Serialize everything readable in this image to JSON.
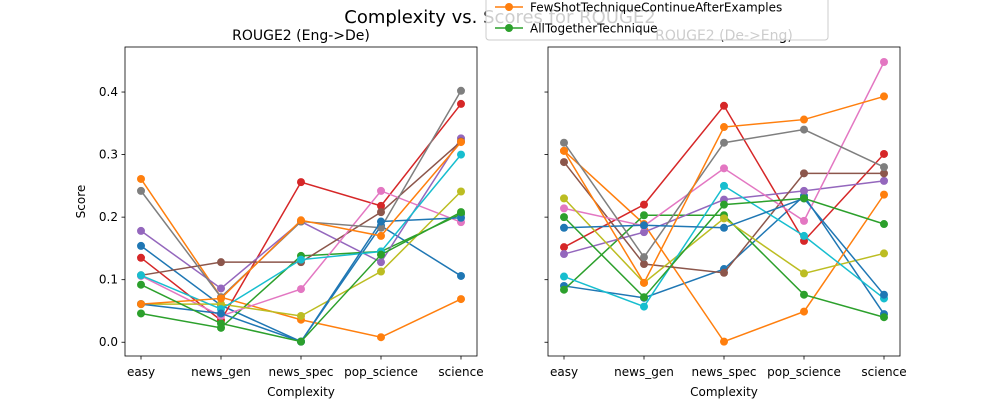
{
  "figure": {
    "suptitle": "Complexity vs. Scores for ROUGE2"
  },
  "legend": {
    "placement": "top-center",
    "entries": [
      {
        "label": "FewShotTechniqueContinueAfterExamples",
        "color": "#ff7f0e"
      },
      {
        "label": "AllTogetherTechnique",
        "color": "#2ca02c"
      }
    ]
  },
  "chart_data": [
    {
      "type": "line",
      "title": "ROUGE2 (Eng->De)",
      "xlabel": "Complexity",
      "ylabel": "Score",
      "categories": [
        "easy",
        "news_gen",
        "news_spec",
        "pop_science",
        "science"
      ],
      "ylim": [
        -0.022,
        0.472
      ],
      "yticks": [
        0.0,
        0.1,
        0.2,
        0.3,
        0.4
      ],
      "ytick_labels": [
        "0.0",
        "0.1",
        "0.2",
        "0.3",
        "0.4"
      ],
      "grid": false,
      "series": [
        {
          "color": "#1f77b4",
          "values": [
            0.154,
            0.059,
            0.001,
            0.186,
            0.106
          ]
        },
        {
          "color": "#ff7f0e",
          "values": [
            0.261,
            0.072,
            0.036,
            0.008,
            0.069
          ]
        },
        {
          "color": "#2ca02c",
          "values": [
            0.046,
            0.023,
            0.138,
            0.145,
            0.205
          ]
        },
        {
          "color": "#d62728",
          "values": [
            0.135,
            0.035,
            0.256,
            0.218,
            0.381
          ]
        },
        {
          "color": "#9467bd",
          "values": [
            0.178,
            0.086,
            0.193,
            0.128,
            0.326
          ]
        },
        {
          "color": "#8c564b",
          "values": [
            0.107,
            0.128,
            0.128,
            0.208,
            0.321
          ]
        },
        {
          "color": "#e377c2",
          "values": [
            0.106,
            0.042,
            0.085,
            0.242,
            0.192
          ]
        },
        {
          "color": "#7f7f7f",
          "values": [
            0.242,
            0.072,
            0.193,
            0.183,
            0.402
          ]
        },
        {
          "color": "#bcbd22",
          "values": [
            0.061,
            0.061,
            0.042,
            0.113,
            0.241
          ]
        },
        {
          "color": "#17becf",
          "values": [
            0.107,
            0.053,
            0.132,
            0.145,
            0.3
          ]
        },
        {
          "color": "#1f77b4",
          "values": [
            0.061,
            0.046,
            0.001,
            0.193,
            0.199
          ]
        },
        {
          "color": "#ff7f0e",
          "values": [
            0.061,
            0.07,
            0.195,
            0.17,
            0.32
          ]
        },
        {
          "color": "#2ca02c",
          "values": [
            0.092,
            0.03,
            0.001,
            0.14,
            0.208
          ]
        }
      ]
    },
    {
      "type": "line",
      "title": "ROUGE2 (De->Eng)",
      "xlabel": "Complexity",
      "ylabel": "",
      "categories": [
        "easy",
        "news_gen",
        "news_spec",
        "pop_science",
        "science"
      ],
      "ylim": [
        -0.022,
        0.472
      ],
      "yticks": [
        0.0,
        0.1,
        0.2,
        0.3,
        0.4
      ],
      "ytick_labels": [
        "",
        "",
        "",
        "",
        ""
      ],
      "grid": false,
      "series": [
        {
          "color": "#1f77b4",
          "values": [
            0.09,
            0.071,
            0.117,
            0.234,
            0.045
          ]
        },
        {
          "color": "#ff7f0e",
          "values": [
            0.306,
            0.189,
            0.001,
            0.049,
            0.236
          ]
        },
        {
          "color": "#2ca02c",
          "values": [
            0.084,
            0.203,
            0.203,
            0.076,
            0.04
          ]
        },
        {
          "color": "#d62728",
          "values": [
            0.152,
            0.22,
            0.378,
            0.162,
            0.301
          ]
        },
        {
          "color": "#9467bd",
          "values": [
            0.141,
            0.176,
            0.228,
            0.242,
            0.258
          ]
        },
        {
          "color": "#8c564b",
          "values": [
            0.288,
            0.125,
            0.111,
            0.27,
            0.27
          ]
        },
        {
          "color": "#e377c2",
          "values": [
            0.214,
            0.186,
            0.278,
            0.194,
            0.448
          ]
        },
        {
          "color": "#7f7f7f",
          "values": [
            0.319,
            0.136,
            0.319,
            0.34,
            0.28
          ]
        },
        {
          "color": "#bcbd22",
          "values": [
            0.23,
            0.095,
            0.198,
            0.11,
            0.142
          ]
        },
        {
          "color": "#17becf",
          "values": [
            0.105,
            0.057,
            0.25,
            0.17,
            0.07
          ]
        },
        {
          "color": "#1f77b4",
          "values": [
            0.183,
            0.187,
            0.183,
            0.23,
            0.076
          ]
        },
        {
          "color": "#ff7f0e",
          "values": [
            0.306,
            0.095,
            0.344,
            0.356,
            0.393
          ]
        },
        {
          "color": "#2ca02c",
          "values": [
            0.2,
            0.072,
            0.22,
            0.23,
            0.189
          ]
        }
      ]
    }
  ]
}
